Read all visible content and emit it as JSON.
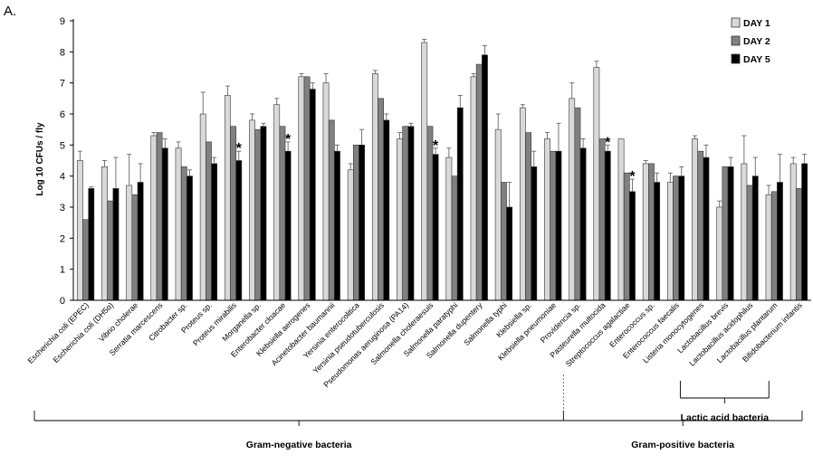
{
  "panel_label": "A.",
  "chart_data": {
    "type": "bar",
    "title": "",
    "xlabel": "",
    "ylabel": "Log 10 CFUs / fly",
    "ylim": [
      0,
      9
    ],
    "yticks": [
      "0",
      "1",
      "2",
      "3",
      "4",
      "5",
      "6",
      "7",
      "8",
      "9"
    ],
    "grid": false,
    "legend_position": "top-right",
    "categories": [
      "Escherichia coli (EPEC)",
      "Escherichia coli (DH5α)",
      "Vibrio cholerae",
      "Serratia marcescens",
      "Citrobacter sp.",
      "Proteus sp.",
      "Proteus mirabilis",
      "Morganella sp.",
      "Enterobacter cloacae",
      "Klebsiella aerogenes",
      "Acinetobacter baumannii",
      "Yersinia enterocolitica",
      "Yersinia pseudotuberculosis",
      "Pseudomonas aeruginosa (PA14)",
      "Salmonella choleraesuis",
      "Salmonella paratyphi",
      "Salmonella dupentery",
      "Salmonella typhi",
      "Klebsiella sp.",
      "Klebsiella pneumoniae",
      "Providencia sp.",
      "Pasteurella multocida",
      "Streptococcus agalactiae",
      "Enterococcus sp.",
      "Enterococcus faecalis",
      "Listeria monocytogenes",
      "Lactobacillus brevis",
      "Lactobacillus acidophilus",
      "Lactobacillus plantarum",
      "Bifidobacterium infantis"
    ],
    "series": [
      {
        "name": "DAY 1",
        "color": "#d9d9d9",
        "values": [
          4.5,
          4.3,
          3.7,
          5.3,
          4.9,
          6.0,
          6.6,
          5.8,
          6.3,
          7.2,
          7.0,
          4.2,
          7.3,
          5.2,
          8.3,
          4.6,
          7.2,
          5.5,
          6.2,
          5.2,
          6.5,
          7.5,
          5.2,
          4.4,
          3.8,
          5.2,
          3.0,
          4.4,
          3.4,
          4.4
        ],
        "errors": [
          0.3,
          0.2,
          1.0,
          0.1,
          0.2,
          0.7,
          0.3,
          0.2,
          0.2,
          0.1,
          0.3,
          0.2,
          0.1,
          0.2,
          0.1,
          0.3,
          0.1,
          0.5,
          0.1,
          0.2,
          0.5,
          0.2,
          0.0,
          0.1,
          0.3,
          0.1,
          0.2,
          0.9,
          0.3,
          0.2
        ]
      },
      {
        "name": "DAY 2",
        "color": "#808080",
        "values": [
          2.6,
          3.2,
          3.4,
          5.4,
          4.3,
          5.1,
          5.6,
          5.5,
          5.6,
          7.2,
          5.8,
          5.0,
          6.5,
          5.6,
          5.6,
          4.0,
          7.6,
          3.8,
          5.4,
          4.8,
          6.2,
          5.2,
          4.1,
          4.4,
          4.0,
          4.8,
          4.3,
          3.7,
          3.5,
          3.6
        ]
      },
      {
        "name": "DAY 5",
        "color": "#000000",
        "values": [
          3.6,
          3.6,
          3.8,
          4.9,
          4.0,
          4.4,
          4.5,
          5.6,
          4.8,
          6.8,
          4.8,
          5.0,
          5.8,
          5.6,
          4.7,
          6.2,
          7.9,
          3.0,
          4.3,
          4.8,
          4.9,
          4.8,
          3.5,
          3.8,
          4.0,
          4.6,
          4.3,
          4.0,
          3.8,
          4.4
        ],
        "errors": [
          0.05,
          1.0,
          0.6,
          0.3,
          0.2,
          0.2,
          0.3,
          0.1,
          0.3,
          0.2,
          0.2,
          0.5,
          0.2,
          0.1,
          0.2,
          0.4,
          0.3,
          0.8,
          0.5,
          0.9,
          0.3,
          0.2,
          0.4,
          0.3,
          0.3,
          0.4,
          0.3,
          0.6,
          0.9,
          0.3
        ]
      }
    ],
    "annotations": [
      {
        "text": "*",
        "category_index": 6,
        "series": "DAY 5"
      },
      {
        "text": "*",
        "category_index": 8,
        "series": "DAY 5"
      },
      {
        "text": "*",
        "category_index": 14,
        "series": "DAY 5"
      },
      {
        "text": "*",
        "category_index": 21,
        "series": "DAY 5"
      },
      {
        "text": "*",
        "category_index": 22,
        "series": "DAY 5"
      }
    ],
    "groups": [
      {
        "label": "Gram-negative bacteria",
        "from_index": 0,
        "to_index": 19
      },
      {
        "label": "Gram-positive bacteria",
        "from_index": 20,
        "to_index": 29
      },
      {
        "label": "Lactic acid bacteria",
        "from_index": 23,
        "to_index": 28
      }
    ]
  }
}
